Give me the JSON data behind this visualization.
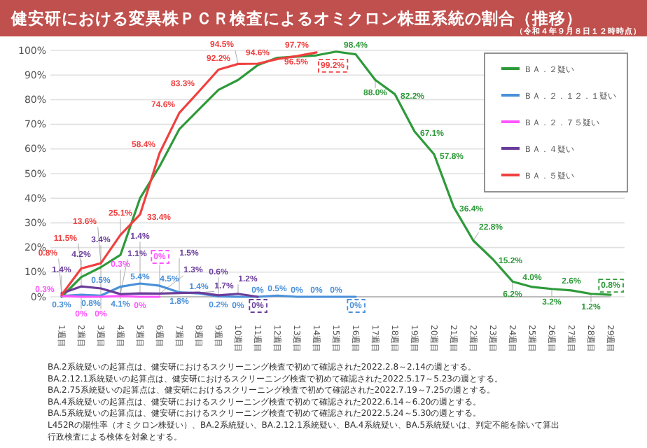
{
  "chart_data": {
    "type": "line",
    "title": "健安研における変異株ＰＣＲ検査によるオミクロン株亜系統の割合（推移）",
    "subtitle": "（令和４年９月８日１２時時点）",
    "categories": [
      "1週目",
      "2週目",
      "3週目",
      "4週目",
      "5週目",
      "6週目",
      "7週目",
      "8週目",
      "9週目",
      "10週目",
      "11週目",
      "12週目",
      "13週目",
      "14週目",
      "15週目",
      "16週目",
      "17週目",
      "18週目",
      "19週目",
      "20週目",
      "21週目",
      "22週目",
      "23週目",
      "24週目",
      "25週目",
      "26週目",
      "27週目",
      "28週目",
      "29週目"
    ],
    "series": [
      {
        "name": "ＢＡ．２疑い",
        "color": "#2e9a3a",
        "values": [
          0,
          8,
          12,
          17,
          40,
          53,
          68,
          76,
          84,
          88,
          94,
          97,
          97.5,
          98,
          99.5,
          98.4,
          88.0,
          82.2,
          67.1,
          57.8,
          36.4,
          22.8,
          15.2,
          6.2,
          4.0,
          3.2,
          2.6,
          1.2,
          0.8
        ],
        "value_labels": [
          null,
          null,
          null,
          null,
          null,
          null,
          null,
          null,
          null,
          null,
          null,
          null,
          null,
          null,
          null,
          "98.4%",
          "88.0%",
          "82.2%",
          "67.1%",
          "57.8%",
          "36.4%",
          "22.8%",
          "15.2%",
          "6.2%",
          "4.0%",
          "3.2%",
          "2.6%",
          "1.2%",
          "0.8%"
        ]
      },
      {
        "name": "ＢＡ．２．１２．１疑い",
        "color": "#4a90d9",
        "values": [
          0.3,
          0.8,
          0.5,
          4.1,
          5.4,
          4.5,
          1.8,
          1.4,
          0.2,
          0,
          0,
          0.5,
          0,
          0,
          0,
          0,
          null,
          null,
          null,
          null,
          null,
          null,
          null,
          null,
          null,
          null,
          null,
          null,
          null
        ],
        "value_labels": [
          "0.3%",
          "0.8%",
          "0.5%",
          "4.1%",
          "5.4%",
          "4.5%",
          "1.8%",
          "1.4%",
          "0.2%",
          "0%",
          "0%",
          "0.5%",
          "0%",
          "0%",
          "0%",
          "0%",
          null,
          null,
          null,
          null,
          null,
          null,
          null,
          null,
          null,
          null,
          null,
          null,
          null
        ]
      },
      {
        "name": "ＢＡ．２．７５疑い",
        "color": "#ff55ff",
        "values": [
          0.3,
          0,
          0,
          0.3,
          0,
          0,
          null,
          null,
          null,
          null,
          null,
          null,
          null,
          null,
          null,
          null,
          null,
          null,
          null,
          null,
          null,
          null,
          null,
          null,
          null,
          null,
          null,
          null,
          null
        ],
        "value_labels": [
          "0.3%",
          "0%",
          "0%",
          "0.3%",
          "0%",
          "0%",
          null,
          null,
          null,
          null,
          null,
          null,
          null,
          null,
          null,
          null,
          null,
          null,
          null,
          null,
          null,
          null,
          null,
          null,
          null,
          null,
          null,
          null,
          null
        ]
      },
      {
        "name": "ＢＡ．４疑い",
        "color": "#6a3d9a",
        "values": [
          1.4,
          4.2,
          3.4,
          1.1,
          1.4,
          1.3,
          1.5,
          1.7,
          0.6,
          1.2,
          0,
          null,
          null,
          null,
          null,
          null,
          null,
          null,
          null,
          null,
          null,
          null,
          null,
          null,
          null,
          null,
          null,
          null,
          null
        ],
        "value_labels": [
          "1.4%",
          "4.2%",
          "3.4%",
          "1.1%",
          "1.4%",
          "1.3%",
          "1.5%",
          "1.7%",
          "0.6%",
          "1.2%",
          "0%",
          null,
          null,
          null,
          null,
          null,
          null,
          null,
          null,
          null,
          null,
          null,
          null,
          null,
          null,
          null,
          null,
          null,
          null
        ]
      },
      {
        "name": "ＢＡ．５疑い",
        "color": "#f04040",
        "values": [
          0.8,
          11.5,
          13.6,
          25.1,
          33.4,
          58.4,
          74.6,
          83.3,
          92.2,
          94.5,
          94.6,
          96.5,
          97.7,
          99.2,
          null,
          null,
          null,
          null,
          null,
          null,
          null,
          null,
          null,
          null,
          null,
          null,
          null,
          null,
          null
        ],
        "value_labels": [
          "0.8%",
          "11.5%",
          "13.6%",
          "25.1%",
          "33.4%",
          "58.4%",
          "74.6%",
          "83.3%",
          "92.2%",
          "94.5%",
          "94.6%",
          "96.5%",
          "97.7%",
          "99.2%",
          null,
          null,
          null,
          null,
          null,
          null,
          null,
          null,
          null,
          null,
          null,
          null,
          null,
          null,
          null
        ]
      }
    ],
    "ylim": [
      0,
      100
    ],
    "yticks": [
      {
        "value": 0,
        "label": "0%"
      },
      {
        "value": 10,
        "label": "10%"
      },
      {
        "value": 20,
        "label": "20%"
      },
      {
        "value": 30,
        "label": "30%"
      },
      {
        "value": 40,
        "label": "40%"
      },
      {
        "value": 50,
        "label": "50%"
      },
      {
        "value": 60,
        "label": "60%"
      },
      {
        "value": 70,
        "label": "70%"
      },
      {
        "value": 80,
        "label": "80%"
      },
      {
        "value": 90,
        "label": "90%"
      },
      {
        "value": 100,
        "label": "100%"
      }
    ],
    "grid": "y",
    "legend": "top right",
    "annotations": [
      "BA.2系統疑いの起算点は、健安研におけるスクリーニング検査で初めて確認された2022.2.8～2.14の週とする。",
      "BA.2.12.1系統疑いの起算点は、健安研におけるスクリーニング検査で初めて確認された2022.5.17～5.23の週とする。",
      "BA.2.75系統疑いの起算点は、健安研におけるスクリーニング検査で初めて確認された2022.7.19～7.25の週とする。",
      "BA.4系統疑いの起算点は、健安研におけるスクリーニング検査で初めて確認された2022.6.14～6.20の週とする。",
      "BA.5系統疑いの起算点は、健安研におけるスクリーニング検査で初めて確認された2022.5.24～5.30の週とする。",
      "L452Rの陽性率（オミクロン株疑い）、BA.2系統疑い、BA.2.12.1系統疑い、BA.4系統疑い、BA.5系統疑いは、判定不能を除いて算出",
      "行政検査による検体を対象とする。"
    ]
  }
}
